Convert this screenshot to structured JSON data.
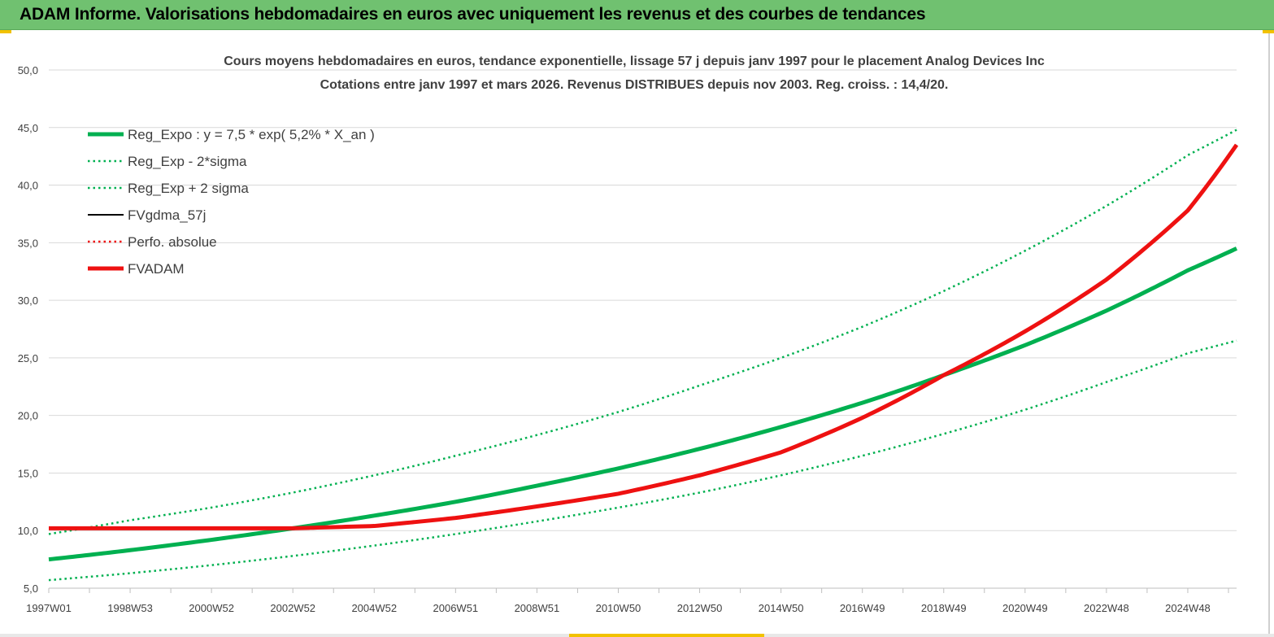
{
  "banner": {
    "title": "ADAM Informe. Valorisations hebdomadaires en euros avec uniquement les revenus et des courbes de tendances"
  },
  "colors": {
    "banner_bg": "#70c170",
    "trend_green": "#00b050",
    "adam_red": "#ee1111",
    "fv_black": "#000000",
    "grid": "#d9d9d9",
    "accent_yellow": "#f2c200"
  },
  "chart_data": {
    "type": "line",
    "title_line1": "Cours moyens hebdomadaires en euros, tendance exponentielle, lissage 57 j depuis janv 1997 pour le  placement Analog Devices Inc",
    "title_line2": "Cotations entre janv 1997 et mars 2026. Revenus  DISTRIBUES depuis nov 2003. Reg. croiss. : 14,4/20.",
    "xlabel": "",
    "ylabel": "",
    "ylim": [
      5,
      50
    ],
    "yticks": [
      "5,0",
      "10,0",
      "15,0",
      "20,0",
      "25,0",
      "30,0",
      "35,0",
      "40,0",
      "45,0",
      "50,0"
    ],
    "xlim": [
      1997.0,
      2026.2
    ],
    "xticks": [
      {
        "label": "1997W01",
        "x": 1997.0
      },
      {
        "label": "1998W53",
        "x": 1999.0
      },
      {
        "label": "2000W52",
        "x": 2001.0
      },
      {
        "label": "2002W52",
        "x": 2003.0
      },
      {
        "label": "2004W52",
        "x": 2005.0
      },
      {
        "label": "2006W51",
        "x": 2007.0
      },
      {
        "label": "2008W51",
        "x": 2009.0
      },
      {
        "label": "2010W50",
        "x": 2011.0
      },
      {
        "label": "2012W50",
        "x": 2013.0
      },
      {
        "label": "2014W50",
        "x": 2015.0
      },
      {
        "label": "2016W49",
        "x": 2017.0
      },
      {
        "label": "2018W49",
        "x": 2019.0
      },
      {
        "label": "2020W49",
        "x": 2021.0
      },
      {
        "label": "2022W48",
        "x": 2023.0
      },
      {
        "label": "2024W48",
        "x": 2025.0
      }
    ],
    "grid": true,
    "legend_position": "top-left",
    "series": [
      {
        "name": "Reg_Expo : y = 7,5 * exp( 5,2% *  X_an )",
        "style": "solid-thick",
        "color": "#00b050",
        "x": [
          1997,
          1999,
          2001,
          2003,
          2005,
          2007,
          2009,
          2011,
          2013,
          2015,
          2017,
          2019,
          2021,
          2023,
          2025,
          2026.2
        ],
        "y": [
          7.5,
          8.3,
          9.2,
          10.2,
          11.3,
          12.5,
          13.9,
          15.4,
          17.1,
          19.0,
          21.1,
          23.5,
          26.1,
          29.1,
          32.6,
          34.5
        ]
      },
      {
        "name": "Reg_Exp - 2*sigma",
        "style": "dotted",
        "color": "#00b050",
        "x": [
          1997,
          1999,
          2001,
          2003,
          2005,
          2007,
          2009,
          2011,
          2013,
          2015,
          2017,
          2019,
          2021,
          2023,
          2025,
          2026.2
        ],
        "y": [
          5.7,
          6.3,
          7.0,
          7.8,
          8.7,
          9.7,
          10.8,
          12.0,
          13.3,
          14.8,
          16.5,
          18.4,
          20.5,
          22.9,
          25.4,
          26.5
        ]
      },
      {
        "name": "Reg_Exp + 2 sigma",
        "style": "dotted",
        "color": "#00b050",
        "x": [
          1997,
          1999,
          2001,
          2003,
          2005,
          2007,
          2009,
          2011,
          2013,
          2015,
          2017,
          2019,
          2021,
          2023,
          2025,
          2026.2
        ],
        "y": [
          9.7,
          10.9,
          12.0,
          13.3,
          14.8,
          16.5,
          18.3,
          20.3,
          22.6,
          25.0,
          27.7,
          30.8,
          34.3,
          38.2,
          42.6,
          44.8
        ]
      },
      {
        "name": "FVgdma_57j",
        "style": "solid",
        "color": "#000000",
        "x": [
          1997,
          2001,
          2003,
          2005,
          2007,
          2009,
          2011,
          2013,
          2015,
          2017,
          2019,
          2021,
          2023,
          2025,
          2026.2
        ],
        "y": [
          10.2,
          10.2,
          10.2,
          10.4,
          11.1,
          12.1,
          13.2,
          14.8,
          16.8,
          19.8,
          23.5,
          27.3,
          31.8,
          37.8,
          43.5
        ]
      },
      {
        "name": "Perfo. absolue",
        "style": "dotted",
        "color": "#ee1111",
        "x": [
          1997,
          2001,
          2003,
          2005,
          2007,
          2009,
          2011,
          2013,
          2015,
          2017,
          2019,
          2021,
          2023,
          2025,
          2026.2
        ],
        "y": [
          10.2,
          10.2,
          10.2,
          10.4,
          11.1,
          12.1,
          13.2,
          14.8,
          16.8,
          19.8,
          23.5,
          27.3,
          31.8,
          37.8,
          43.5
        ]
      },
      {
        "name": "FVADAM",
        "style": "solid-thick",
        "color": "#ee1111",
        "x": [
          1997,
          2001,
          2003,
          2005,
          2007,
          2009,
          2011,
          2013,
          2015,
          2017,
          2019,
          2021,
          2023,
          2025,
          2026.2
        ],
        "y": [
          10.2,
          10.2,
          10.2,
          10.4,
          11.1,
          12.1,
          13.2,
          14.8,
          16.8,
          19.8,
          23.5,
          27.3,
          31.8,
          37.8,
          43.5
        ]
      }
    ]
  }
}
